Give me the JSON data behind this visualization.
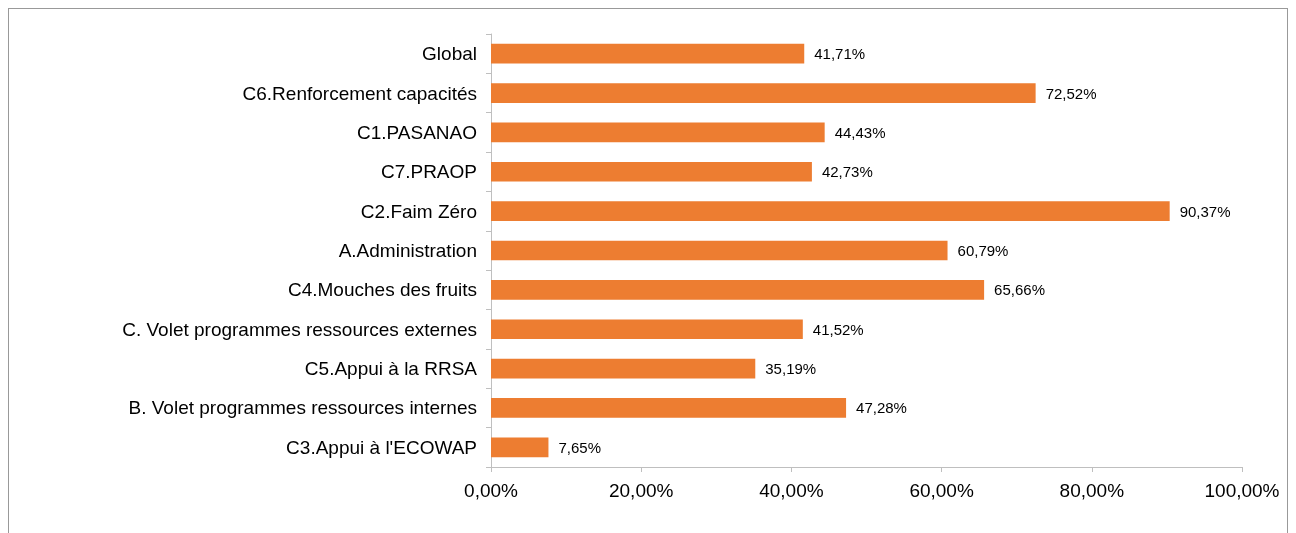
{
  "chart_data": {
    "type": "bar",
    "orientation": "horizontal",
    "categories": [
      "Global",
      "C6.Renforcement capacités",
      "C1.PASANAO",
      "C7.PRAOP",
      "C2.Faim Zéro",
      "A.Administration",
      "C4.Mouches des fruits",
      "C. Volet programmes ressources externes",
      "C5.Appui à la RRSA",
      "B. Volet programmes ressources internes",
      "C3.Appui à l'ECOWAP"
    ],
    "values": [
      41.71,
      72.52,
      44.43,
      42.73,
      90.37,
      60.79,
      65.66,
      41.52,
      35.19,
      47.28,
      7.65
    ],
    "value_labels": [
      "41,71%",
      "72,52%",
      "44,43%",
      "42,73%",
      "90,37%",
      "60,79%",
      "65,66%",
      "41,52%",
      "35,19%",
      "47,28%",
      "7,65%"
    ],
    "color": "#ed7d31",
    "xlim": [
      0,
      100
    ],
    "xticks": [
      {
        "value": 0,
        "label": "0,00%"
      },
      {
        "value": 20,
        "label": "20,00%"
      },
      {
        "value": 40,
        "label": "40,00%"
      },
      {
        "value": 60,
        "label": "60,00%"
      },
      {
        "value": 80,
        "label": "80,00%"
      },
      {
        "value": 100,
        "label": "100,00%"
      }
    ],
    "grid": false
  }
}
